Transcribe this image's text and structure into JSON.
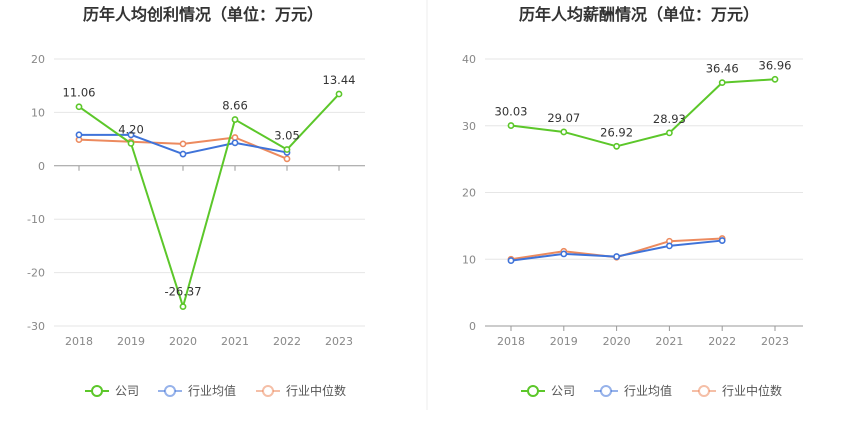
{
  "chart_data": [
    {
      "type": "line",
      "title": "历年人均创利情况（单位：万元）",
      "categories": [
        "2018",
        "2019",
        "2020",
        "2021",
        "2022",
        "2023"
      ],
      "ylim": [
        -30,
        20
      ],
      "yticks": [
        20,
        10,
        0,
        -10,
        -20,
        -30
      ],
      "grid": true,
      "legend_position": "bottom",
      "series": [
        {
          "name": "公司",
          "color": "#5cc72a",
          "values": [
            11.06,
            4.2,
            -26.37,
            8.66,
            3.05,
            13.44
          ],
          "labels": [
            "11.06",
            "4.20",
            "-26.37",
            "8.66",
            "3.05",
            "13.44"
          ]
        },
        {
          "name": "行业均值",
          "color": "#3f73d9",
          "values": [
            5.8,
            5.8,
            2.2,
            4.3,
            2.5,
            null
          ]
        },
        {
          "name": "行业中位数",
          "color": "#ec8a5e",
          "values": [
            4.9,
            4.5,
            4.1,
            5.3,
            1.3,
            null
          ]
        }
      ]
    },
    {
      "type": "line",
      "title": "历年人均薪酬情况（单位：万元）",
      "categories": [
        "2018",
        "2019",
        "2020",
        "2021",
        "2022",
        "2023"
      ],
      "ylim": [
        0,
        40
      ],
      "yticks": [
        40,
        30,
        20,
        10,
        0
      ],
      "grid": true,
      "legend_position": "bottom",
      "series": [
        {
          "name": "公司",
          "color": "#5cc72a",
          "values": [
            30.03,
            29.07,
            26.92,
            28.93,
            36.46,
            36.96
          ],
          "labels": [
            "30.03",
            "29.07",
            "26.92",
            "28.93",
            "36.46",
            "36.96"
          ]
        },
        {
          "name": "行业均值",
          "color": "#3f73d9",
          "values": [
            9.8,
            10.8,
            10.4,
            12.0,
            12.8,
            null
          ]
        },
        {
          "name": "行业中位数",
          "color": "#ec8a5e",
          "values": [
            10.0,
            11.2,
            10.3,
            12.7,
            13.1,
            null
          ]
        }
      ]
    }
  ]
}
